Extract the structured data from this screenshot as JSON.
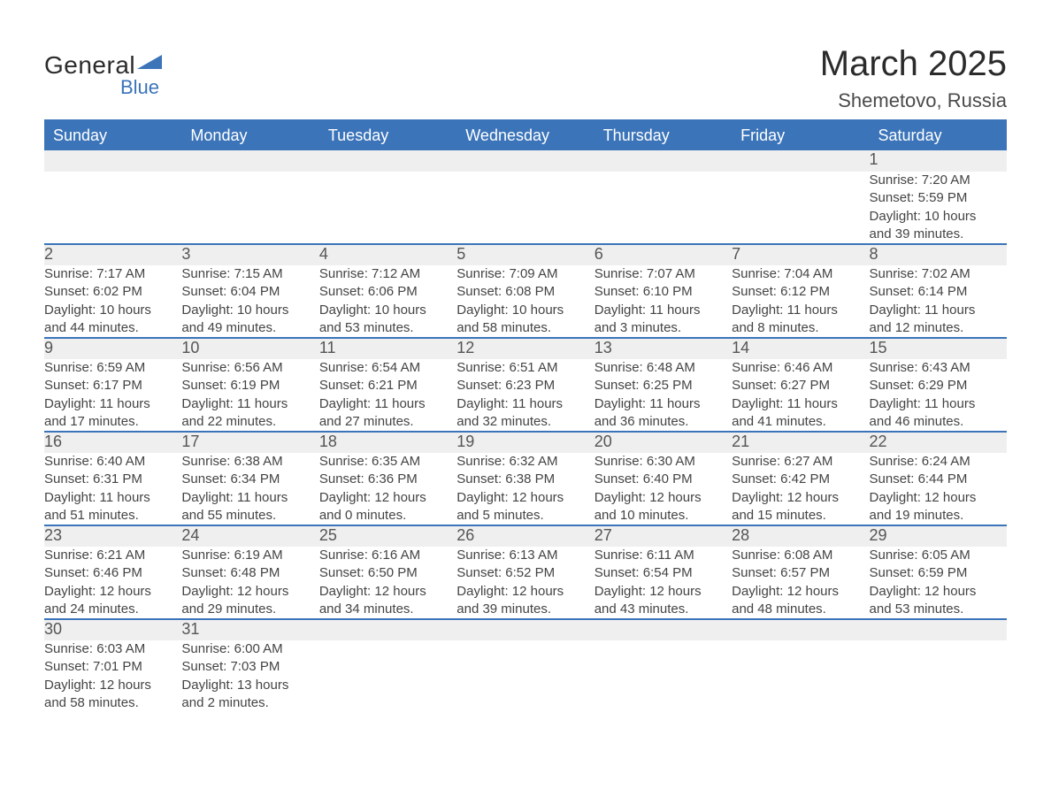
{
  "logo": {
    "word1": "General",
    "word2": "Blue"
  },
  "title": "March 2025",
  "subtitle": "Shemetovo, Russia",
  "colors": {
    "header_bg": "#3b74b9",
    "header_fg": "#ffffff",
    "row_divider": "#3b74b9",
    "daynum_bg": "#efefef",
    "text": "#444444",
    "title": "#2b2b2b",
    "logo_blue": "#3b74b9"
  },
  "weekdays": [
    "Sunday",
    "Monday",
    "Tuesday",
    "Wednesday",
    "Thursday",
    "Friday",
    "Saturday"
  ],
  "weeks": [
    [
      null,
      null,
      null,
      null,
      null,
      null,
      {
        "n": "1",
        "sr": "Sunrise: 7:20 AM",
        "ss": "Sunset: 5:59 PM",
        "d1": "Daylight: 10 hours",
        "d2": "and 39 minutes."
      }
    ],
    [
      {
        "n": "2",
        "sr": "Sunrise: 7:17 AM",
        "ss": "Sunset: 6:02 PM",
        "d1": "Daylight: 10 hours",
        "d2": "and 44 minutes."
      },
      {
        "n": "3",
        "sr": "Sunrise: 7:15 AM",
        "ss": "Sunset: 6:04 PM",
        "d1": "Daylight: 10 hours",
        "d2": "and 49 minutes."
      },
      {
        "n": "4",
        "sr": "Sunrise: 7:12 AM",
        "ss": "Sunset: 6:06 PM",
        "d1": "Daylight: 10 hours",
        "d2": "and 53 minutes."
      },
      {
        "n": "5",
        "sr": "Sunrise: 7:09 AM",
        "ss": "Sunset: 6:08 PM",
        "d1": "Daylight: 10 hours",
        "d2": "and 58 minutes."
      },
      {
        "n": "6",
        "sr": "Sunrise: 7:07 AM",
        "ss": "Sunset: 6:10 PM",
        "d1": "Daylight: 11 hours",
        "d2": "and 3 minutes."
      },
      {
        "n": "7",
        "sr": "Sunrise: 7:04 AM",
        "ss": "Sunset: 6:12 PM",
        "d1": "Daylight: 11 hours",
        "d2": "and 8 minutes."
      },
      {
        "n": "8",
        "sr": "Sunrise: 7:02 AM",
        "ss": "Sunset: 6:14 PM",
        "d1": "Daylight: 11 hours",
        "d2": "and 12 minutes."
      }
    ],
    [
      {
        "n": "9",
        "sr": "Sunrise: 6:59 AM",
        "ss": "Sunset: 6:17 PM",
        "d1": "Daylight: 11 hours",
        "d2": "and 17 minutes."
      },
      {
        "n": "10",
        "sr": "Sunrise: 6:56 AM",
        "ss": "Sunset: 6:19 PM",
        "d1": "Daylight: 11 hours",
        "d2": "and 22 minutes."
      },
      {
        "n": "11",
        "sr": "Sunrise: 6:54 AM",
        "ss": "Sunset: 6:21 PM",
        "d1": "Daylight: 11 hours",
        "d2": "and 27 minutes."
      },
      {
        "n": "12",
        "sr": "Sunrise: 6:51 AM",
        "ss": "Sunset: 6:23 PM",
        "d1": "Daylight: 11 hours",
        "d2": "and 32 minutes."
      },
      {
        "n": "13",
        "sr": "Sunrise: 6:48 AM",
        "ss": "Sunset: 6:25 PM",
        "d1": "Daylight: 11 hours",
        "d2": "and 36 minutes."
      },
      {
        "n": "14",
        "sr": "Sunrise: 6:46 AM",
        "ss": "Sunset: 6:27 PM",
        "d1": "Daylight: 11 hours",
        "d2": "and 41 minutes."
      },
      {
        "n": "15",
        "sr": "Sunrise: 6:43 AM",
        "ss": "Sunset: 6:29 PM",
        "d1": "Daylight: 11 hours",
        "d2": "and 46 minutes."
      }
    ],
    [
      {
        "n": "16",
        "sr": "Sunrise: 6:40 AM",
        "ss": "Sunset: 6:31 PM",
        "d1": "Daylight: 11 hours",
        "d2": "and 51 minutes."
      },
      {
        "n": "17",
        "sr": "Sunrise: 6:38 AM",
        "ss": "Sunset: 6:34 PM",
        "d1": "Daylight: 11 hours",
        "d2": "and 55 minutes."
      },
      {
        "n": "18",
        "sr": "Sunrise: 6:35 AM",
        "ss": "Sunset: 6:36 PM",
        "d1": "Daylight: 12 hours",
        "d2": "and 0 minutes."
      },
      {
        "n": "19",
        "sr": "Sunrise: 6:32 AM",
        "ss": "Sunset: 6:38 PM",
        "d1": "Daylight: 12 hours",
        "d2": "and 5 minutes."
      },
      {
        "n": "20",
        "sr": "Sunrise: 6:30 AM",
        "ss": "Sunset: 6:40 PM",
        "d1": "Daylight: 12 hours",
        "d2": "and 10 minutes."
      },
      {
        "n": "21",
        "sr": "Sunrise: 6:27 AM",
        "ss": "Sunset: 6:42 PM",
        "d1": "Daylight: 12 hours",
        "d2": "and 15 minutes."
      },
      {
        "n": "22",
        "sr": "Sunrise: 6:24 AM",
        "ss": "Sunset: 6:44 PM",
        "d1": "Daylight: 12 hours",
        "d2": "and 19 minutes."
      }
    ],
    [
      {
        "n": "23",
        "sr": "Sunrise: 6:21 AM",
        "ss": "Sunset: 6:46 PM",
        "d1": "Daylight: 12 hours",
        "d2": "and 24 minutes."
      },
      {
        "n": "24",
        "sr": "Sunrise: 6:19 AM",
        "ss": "Sunset: 6:48 PM",
        "d1": "Daylight: 12 hours",
        "d2": "and 29 minutes."
      },
      {
        "n": "25",
        "sr": "Sunrise: 6:16 AM",
        "ss": "Sunset: 6:50 PM",
        "d1": "Daylight: 12 hours",
        "d2": "and 34 minutes."
      },
      {
        "n": "26",
        "sr": "Sunrise: 6:13 AM",
        "ss": "Sunset: 6:52 PM",
        "d1": "Daylight: 12 hours",
        "d2": "and 39 minutes."
      },
      {
        "n": "27",
        "sr": "Sunrise: 6:11 AM",
        "ss": "Sunset: 6:54 PM",
        "d1": "Daylight: 12 hours",
        "d2": "and 43 minutes."
      },
      {
        "n": "28",
        "sr": "Sunrise: 6:08 AM",
        "ss": "Sunset: 6:57 PM",
        "d1": "Daylight: 12 hours",
        "d2": "and 48 minutes."
      },
      {
        "n": "29",
        "sr": "Sunrise: 6:05 AM",
        "ss": "Sunset: 6:59 PM",
        "d1": "Daylight: 12 hours",
        "d2": "and 53 minutes."
      }
    ],
    [
      {
        "n": "30",
        "sr": "Sunrise: 6:03 AM",
        "ss": "Sunset: 7:01 PM",
        "d1": "Daylight: 12 hours",
        "d2": "and 58 minutes."
      },
      {
        "n": "31",
        "sr": "Sunrise: 6:00 AM",
        "ss": "Sunset: 7:03 PM",
        "d1": "Daylight: 13 hours",
        "d2": "and 2 minutes."
      },
      null,
      null,
      null,
      null,
      null
    ]
  ]
}
